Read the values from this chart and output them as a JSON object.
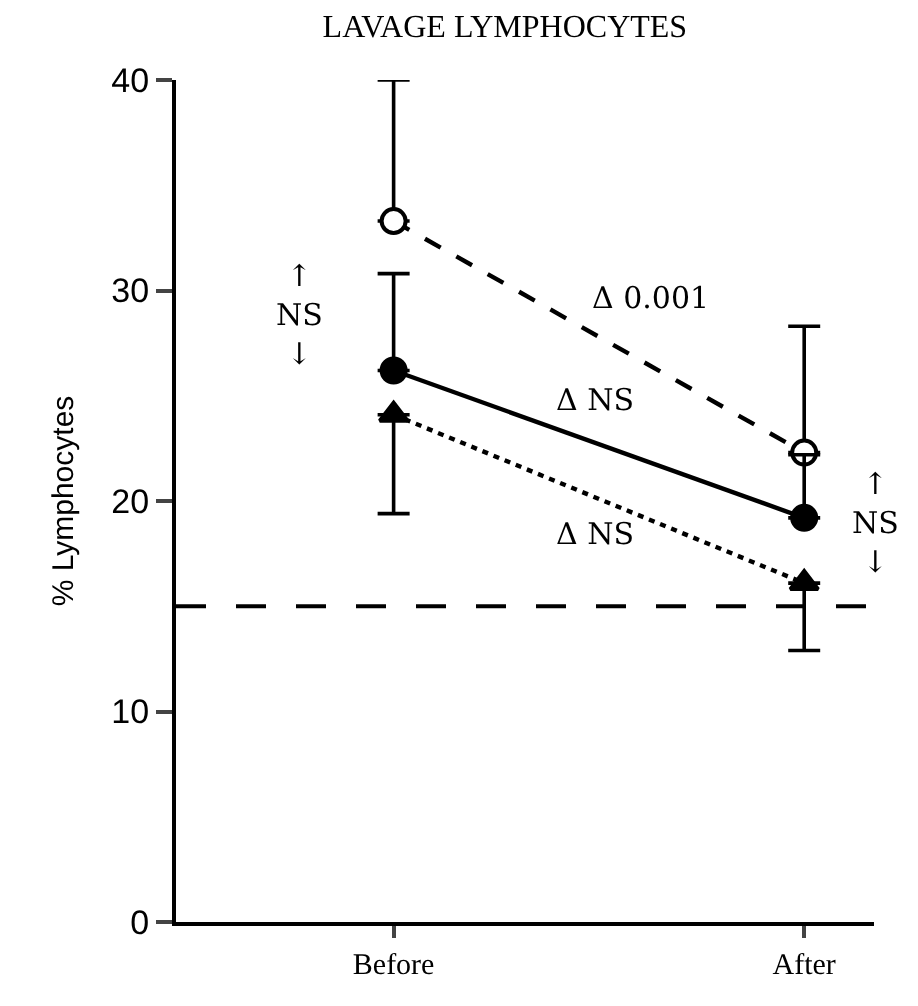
{
  "chart_data": {
    "type": "line",
    "title": "LAVAGE LYMPHOCYTES",
    "ylabel": "% Lymphocytes",
    "categories": [
      "Before",
      "After"
    ],
    "series": [
      {
        "color": "#000000",
        "values": [
          33.3,
          22.3
        ],
        "errors": [
          [
            33.3,
            40
          ],
          [
            22.3,
            28.3
          ]
        ],
        "marker": "circle",
        "line_style": "dashed"
      },
      {
        "color": "#000000",
        "values": [
          26.2,
          19.2
        ],
        "errors": [
          [
            26.2,
            30.8
          ],
          [
            19.2,
            22.2
          ]
        ],
        "marker": "circle",
        "line_style": "solid"
      },
      {
        "color": "#000000",
        "values": [
          24.1,
          16.1
        ],
        "errors": [
          [
            19.4,
            24.1
          ],
          [
            12.9,
            16.1
          ]
        ],
        "marker": "triangle",
        "line_style": "dotted"
      }
    ],
    "ylim": [
      0,
      40
    ],
    "yticks": [
      0,
      10,
      20,
      30,
      40
    ],
    "ref_lines": [
      {
        "axis": "y",
        "value": 15,
        "color": "#000000",
        "line_style": "dashed"
      }
    ],
    "annotations": [
      "Δ 0.001",
      "Δ NS",
      "Δ NS",
      "↑\nNS\n↓",
      "↑\nNS\n↓"
    ]
  }
}
